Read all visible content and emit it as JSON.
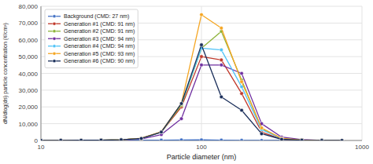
{
  "chart_data": {
    "type": "line",
    "xlabel": "Particle diameter (nm)",
    "ylabel": "dN/dlog(ds) particle concentration (#/cm³)",
    "log": "x",
    "xlim": [
      10,
      1000
    ],
    "ylim": [
      0,
      80000
    ],
    "xticks": [
      10,
      100,
      1000
    ],
    "yticks": [
      0,
      {
        "value": 10000,
        "label": "10,000"
      },
      {
        "value": 20000,
        "label": "20,000"
      },
      {
        "value": 30000,
        "label": "30,000"
      },
      {
        "value": 40000,
        "label": "40,000"
      },
      {
        "value": 50000,
        "label": "50,000"
      },
      {
        "value": 60000,
        "label": "60,000"
      },
      {
        "value": 70000,
        "label": "70,000"
      },
      {
        "value": 80000,
        "label": "80,000"
      }
    ],
    "grid": true,
    "legend": "upper left",
    "marker": "circle",
    "x": [
      10,
      13.3,
      17.8,
      23.7,
      31.6,
      42.2,
      56.2,
      75,
      100,
      133,
      178,
      237,
      316,
      422,
      562,
      750
    ],
    "series": [
      {
        "name": "Background (CMD: 27 nm)",
        "color": "#4472c4",
        "values": [
          50,
          60,
          80,
          100,
          120,
          150,
          200,
          300,
          350,
          200,
          80,
          30,
          10,
          5,
          2,
          1
        ]
      },
      {
        "name": "Generation #1 (CMD: 91 nm)",
        "color": "#c0392b",
        "values": [
          50,
          80,
          120,
          200,
          400,
          1200,
          5000,
          20000,
          50000,
          48000,
          28000,
          5000,
          800,
          200,
          50,
          10
        ]
      },
      {
        "name": "Generation #2 (CMD: 91 nm)",
        "color": "#8db33a",
        "values": [
          50,
          80,
          120,
          200,
          400,
          1200,
          5000,
          21000,
          55000,
          65000,
          36000,
          7000,
          1200,
          300,
          60,
          10
        ]
      },
      {
        "name": "Generation #3 (CMD: 94 nm)",
        "color": "#7030a0",
        "values": [
          50,
          80,
          100,
          150,
          300,
          900,
          3500,
          13000,
          45000,
          45000,
          40000,
          10000,
          2000,
          500,
          100,
          15
        ]
      },
      {
        "name": "Generation #4 (CMD: 94 nm)",
        "color": "#4fc3f7",
        "values": [
          50,
          80,
          120,
          200,
          400,
          1200,
          5000,
          22000,
          55000,
          54000,
          32000,
          6500,
          1000,
          250,
          50,
          10
        ]
      },
      {
        "name": "Generation #5 (CMD: 93 nm)",
        "color": "#f5a623",
        "values": [
          50,
          80,
          120,
          200,
          400,
          1300,
          5200,
          22000,
          75000,
          67000,
          35000,
          7500,
          1200,
          300,
          60,
          10
        ]
      },
      {
        "name": "Generation #6 (CMD: 90 nm)",
        "color": "#1a2e5a",
        "values": [
          50,
          80,
          120,
          200,
          400,
          1200,
          5000,
          22000,
          57000,
          26000,
          18000,
          4000,
          700,
          180,
          40,
          8
        ]
      }
    ]
  }
}
